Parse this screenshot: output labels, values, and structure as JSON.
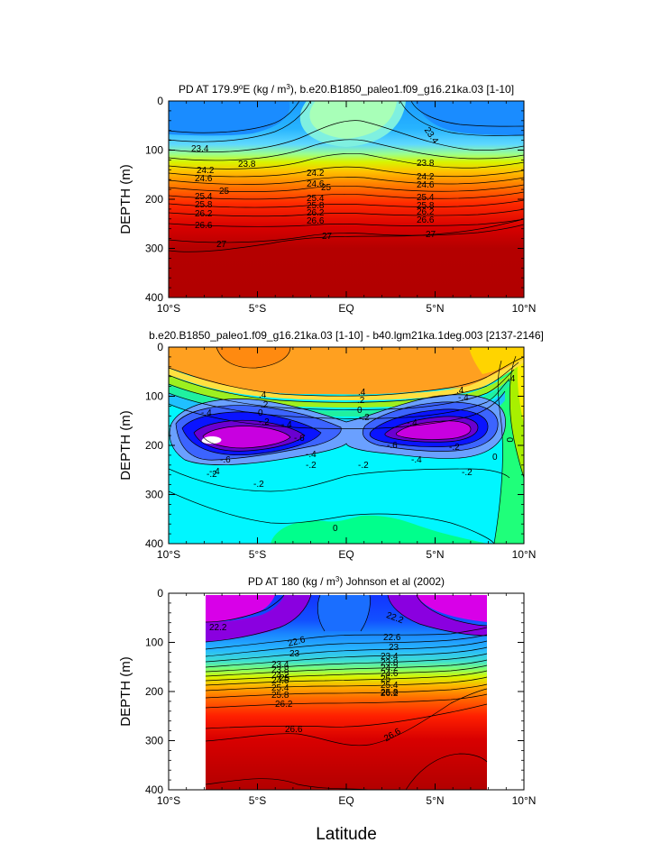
{
  "chart_data": [
    {
      "type": "contour",
      "title_prefix": "PD AT 179.9",
      "title_deg": "o",
      "title_mid": "E (kg / m",
      "title_exp": "3",
      "title_suffix": "), b.e20.B1850_paleo1.f09_g16.21ka.03 [1-10]",
      "ylabel": "DEPTH (m)",
      "yticks": [
        "0",
        "100",
        "200",
        "300",
        "400"
      ],
      "ylim": [
        0,
        400
      ],
      "xlim": [
        -10,
        10
      ],
      "xticks": [
        "10°S",
        "5°S",
        "EQ",
        "5°N",
        "10°N"
      ],
      "contour_labels": [
        "23.4",
        "23.4",
        "23.8",
        "23.8",
        "24.2",
        "24.2",
        "24.2",
        "24.6",
        "24.6",
        "24.6",
        "25",
        "25",
        "25.4",
        "25.4",
        "25.4",
        "25.8",
        "25.8",
        "25.8",
        "26.2",
        "26.2",
        "26.2",
        "26.6",
        "26.6",
        "26.6",
        "27",
        "27",
        "27"
      ]
    },
    {
      "type": "contour",
      "title": "b.e20.B1850_paleo1.f09_g16.21ka.03 [1-10] - b40.lgm21ka.1deg.003 [2137-2146]",
      "ylabel": "DEPTH (m)",
      "yticks": [
        "0",
        "100",
        "200",
        "300",
        "400"
      ],
      "ylim": [
        0,
        400
      ],
      "xlim": [
        -10,
        10
      ],
      "xticks": [
        "10°S",
        "5°S",
        "EQ",
        "5°N",
        "10°N"
      ],
      "contour_labels": [
        ".4",
        ".4",
        ".4",
        ".4",
        ".2",
        ".2",
        "0",
        "0",
        "-.2",
        "-.2",
        "-.4",
        "-.4",
        "-.6",
        "-.6",
        "-.6",
        "-.4",
        "-.4",
        "-.4",
        "-.2",
        "-.2",
        "-.2",
        "0",
        "0",
        "-.2",
        "-.2",
        "-.4",
        "-.4",
        "-.2",
        "0"
      ]
    },
    {
      "type": "contour",
      "title_prefix": "PD AT 180 (kg / m",
      "title_exp": "3",
      "title_suffix": ") Johnson et al (2002)",
      "ylabel": "DEPTH (m)",
      "xlabel": "Latitude",
      "yticks": [
        "0",
        "100",
        "200",
        "300",
        "400"
      ],
      "ylim": [
        0,
        400
      ],
      "xlim": [
        -10,
        10
      ],
      "data_xlim": [
        -8,
        8
      ],
      "xticks": [
        "10°S",
        "5°S",
        "EQ",
        "5°N",
        "10°N"
      ],
      "contour_labels": [
        "22.2",
        "22.2",
        "22.6",
        "22.6",
        "23",
        "23",
        "23.4",
        "23.4",
        "23.8",
        "23.8",
        "24.2",
        "24.2",
        "24.6",
        "24.6",
        "25",
        "25",
        "25.4",
        "25.4",
        "25.8",
        "25.8",
        "26.2",
        "26.2",
        "26.6",
        "26.6"
      ]
    }
  ]
}
